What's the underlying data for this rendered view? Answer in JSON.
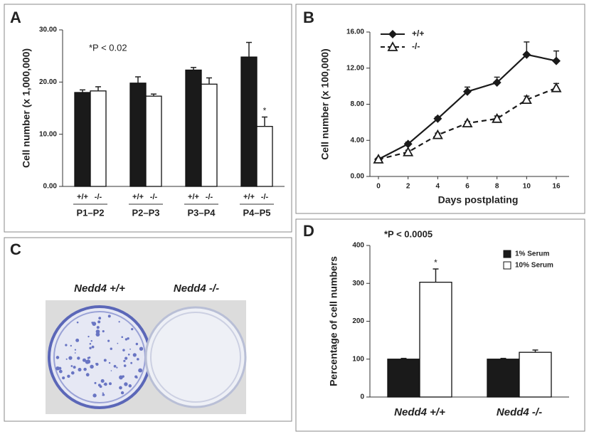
{
  "chart_data": [
    {
      "panel": "A",
      "type": "bar",
      "ylabel": "Cell number (x 1,000,000)",
      "annotation": "*P < 0.02",
      "categories": [
        "P1–P2",
        "P2–P3",
        "P3–P4",
        "P4–P5"
      ],
      "ylim": [
        0,
        30
      ],
      "yticks": [
        {
          "value": 0,
          "label": "0.00"
        },
        {
          "value": 10,
          "label": "10.00"
        },
        {
          "value": 20,
          "label": "20.00"
        },
        {
          "value": 30,
          "label": "30.00"
        }
      ],
      "series": [
        {
          "name": "+/+",
          "color": "#1a1a1a",
          "values": [
            18,
            19.8,
            22.3,
            24.8
          ],
          "errors": [
            0.5,
            1.2,
            0.5,
            2.8
          ],
          "marks": [
            null,
            null,
            null,
            null
          ]
        },
        {
          "name": "-/-",
          "color": "#ffffff",
          "values": [
            18.3,
            17.3,
            19.6,
            11.5
          ],
          "errors": [
            0.8,
            0.4,
            1.2,
            1.8
          ],
          "marks": [
            null,
            null,
            null,
            "*"
          ]
        }
      ]
    },
    {
      "panel": "B",
      "type": "line",
      "xlabel": "Days postplating",
      "ylabel": "Cell number (x 100,000)",
      "legend": "top-left",
      "categories": [
        "0",
        "2",
        "4",
        "6",
        "8",
        "10",
        "16"
      ],
      "ylim": [
        0,
        16
      ],
      "yticks": [
        {
          "value": 0,
          "label": "0.00"
        },
        {
          "value": 4,
          "label": "4.00"
        },
        {
          "value": 8,
          "label": "8.00"
        },
        {
          "value": 12,
          "label": "12.00"
        },
        {
          "value": 16,
          "label": "16.00"
        }
      ],
      "series": [
        {
          "name": "+/+",
          "color": "#1a1a1a",
          "marker": "diamond",
          "dash": false,
          "values": [
            1.9,
            3.6,
            6.4,
            9.4,
            10.4,
            13.5,
            12.8
          ],
          "errors": [
            0.1,
            0.2,
            0.2,
            0.5,
            0.6,
            1.4,
            1.1
          ]
        },
        {
          "name": "-/-",
          "color": "#1a1a1a",
          "marker": "triangle",
          "dash": true,
          "values": [
            1.9,
            2.7,
            4.6,
            5.9,
            6.4,
            8.5,
            9.8
          ],
          "errors": [
            0.1,
            0.2,
            0.2,
            0.2,
            0.3,
            0.4,
            0.5
          ]
        }
      ]
    },
    {
      "panel": "D",
      "type": "bar",
      "ylabel": "Percentage of cell numbers",
      "annotation": "*P < 0.0005",
      "legend": "top-right",
      "categories": [
        "Nedd4 +/+",
        "Nedd4 -/-"
      ],
      "ylim": [
        0,
        400
      ],
      "yticks": [
        0,
        100,
        200,
        300,
        400
      ],
      "series": [
        {
          "name": "1% Serum",
          "color": "#1a1a1a",
          "values": [
            100,
            100
          ],
          "errors": [
            2,
            2
          ],
          "marks": [
            null,
            null
          ]
        },
        {
          "name": "10% Serum",
          "color": "#ffffff",
          "values": [
            303,
            118
          ],
          "errors": [
            35,
            6
          ],
          "marks": [
            "*",
            null
          ]
        }
      ]
    }
  ],
  "image_panel": {
    "panel": "C",
    "captions": [
      "Nedd4 +/+",
      "Nedd4 -/-"
    ]
  }
}
